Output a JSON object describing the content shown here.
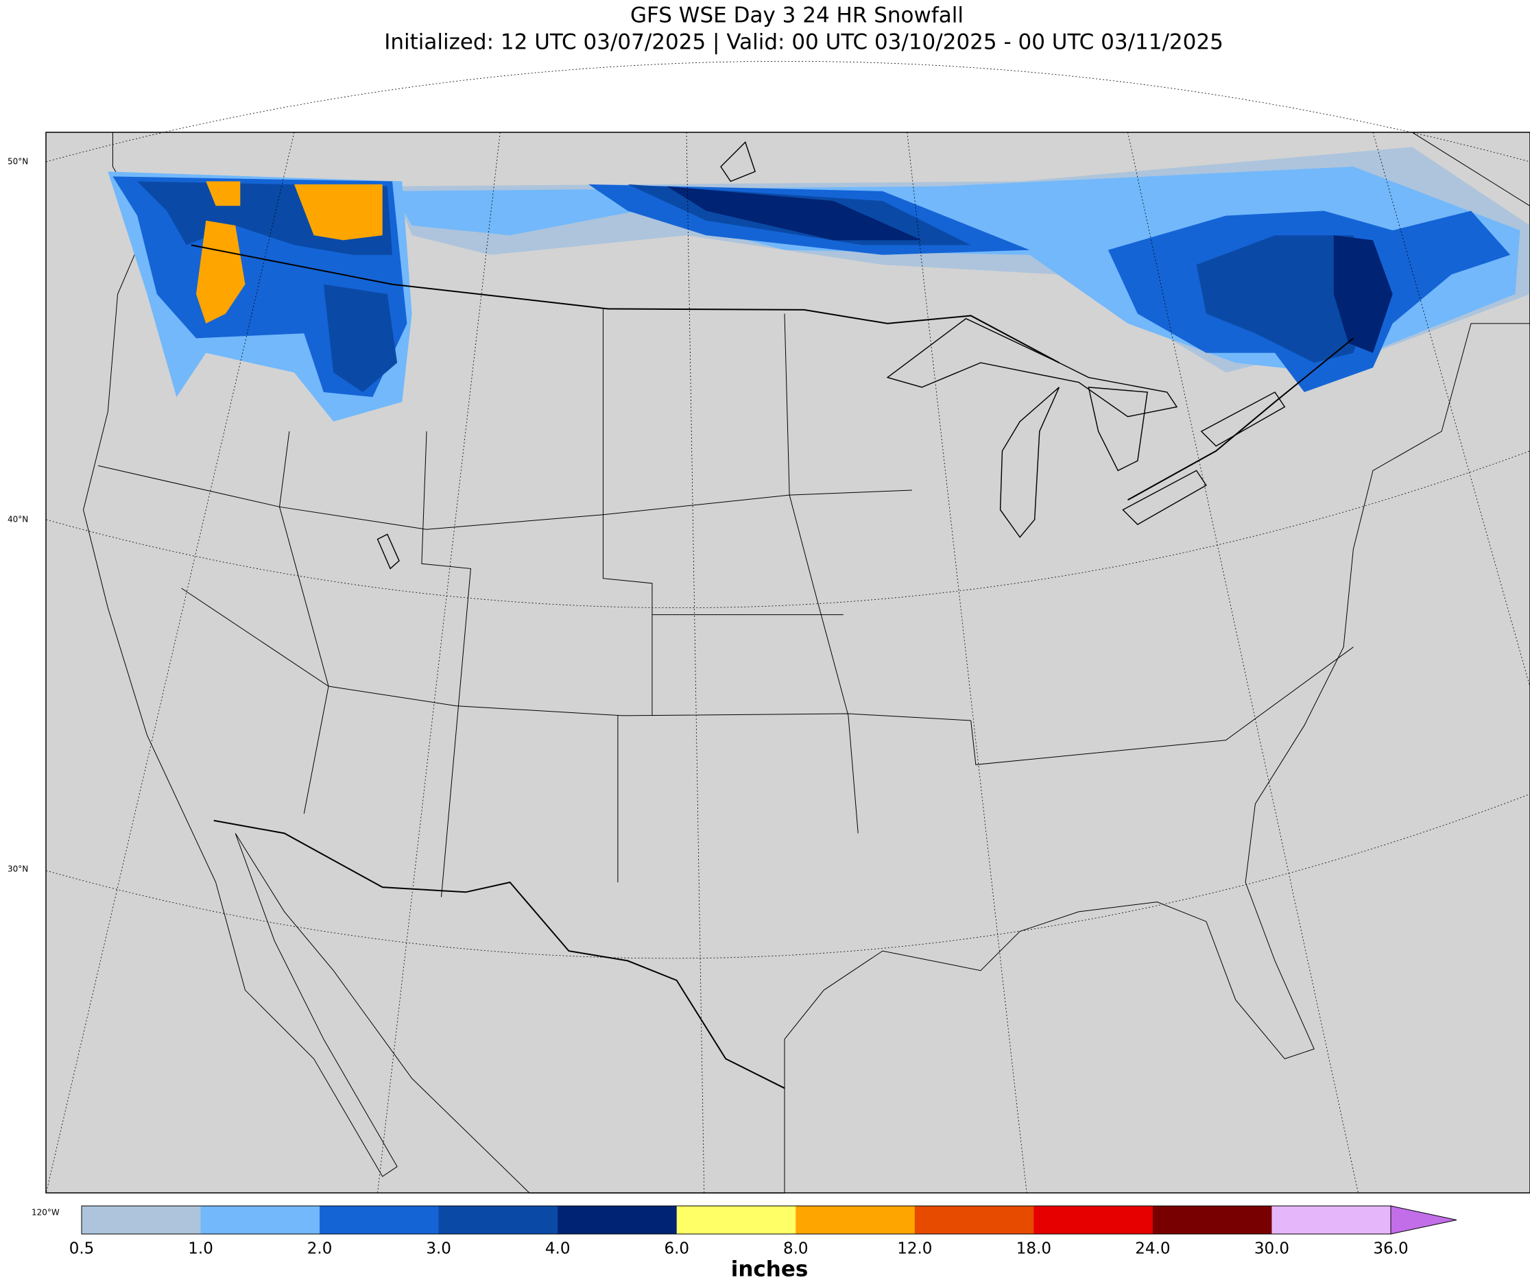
{
  "title": "GFS WSE Day 3 24 HR Snowfall",
  "subtitle": "Initialized: 12 UTC 03/07/2025 | Valid: 00 UTC 03/10/2025 - 00 UTC 03/11/2025",
  "map": {
    "lat_labels": [
      "50°N",
      "40°N",
      "30°N"
    ],
    "lon_labels": [
      "120°W"
    ]
  },
  "colorbar": {
    "label": "inches",
    "ticks": [
      0.5,
      {
        "value": 1,
        "label": "1.0"
      },
      {
        "value": 2,
        "label": "2.0"
      },
      {
        "value": 3,
        "label": "3.0"
      },
      {
        "value": 4,
        "label": "4.0"
      },
      {
        "value": 6,
        "label": "6.0"
      },
      {
        "value": 8,
        "label": "8.0"
      },
      {
        "value": 12,
        "label": "12.0"
      },
      {
        "value": 18,
        "label": "18.0"
      },
      {
        "value": 24,
        "label": "24.0"
      },
      {
        "value": 30,
        "label": "30.0"
      },
      {
        "value": 36,
        "label": "36.0"
      }
    ],
    "colors": [
      "#adc4dc",
      "#72b8fb",
      "#1464d6",
      "#0a4aa6",
      "#002373",
      "#ffff66",
      "#ffa500",
      "#e64b00",
      "#e60000",
      "#780000",
      "#e6b6fa",
      "#c26ee8"
    ]
  }
}
